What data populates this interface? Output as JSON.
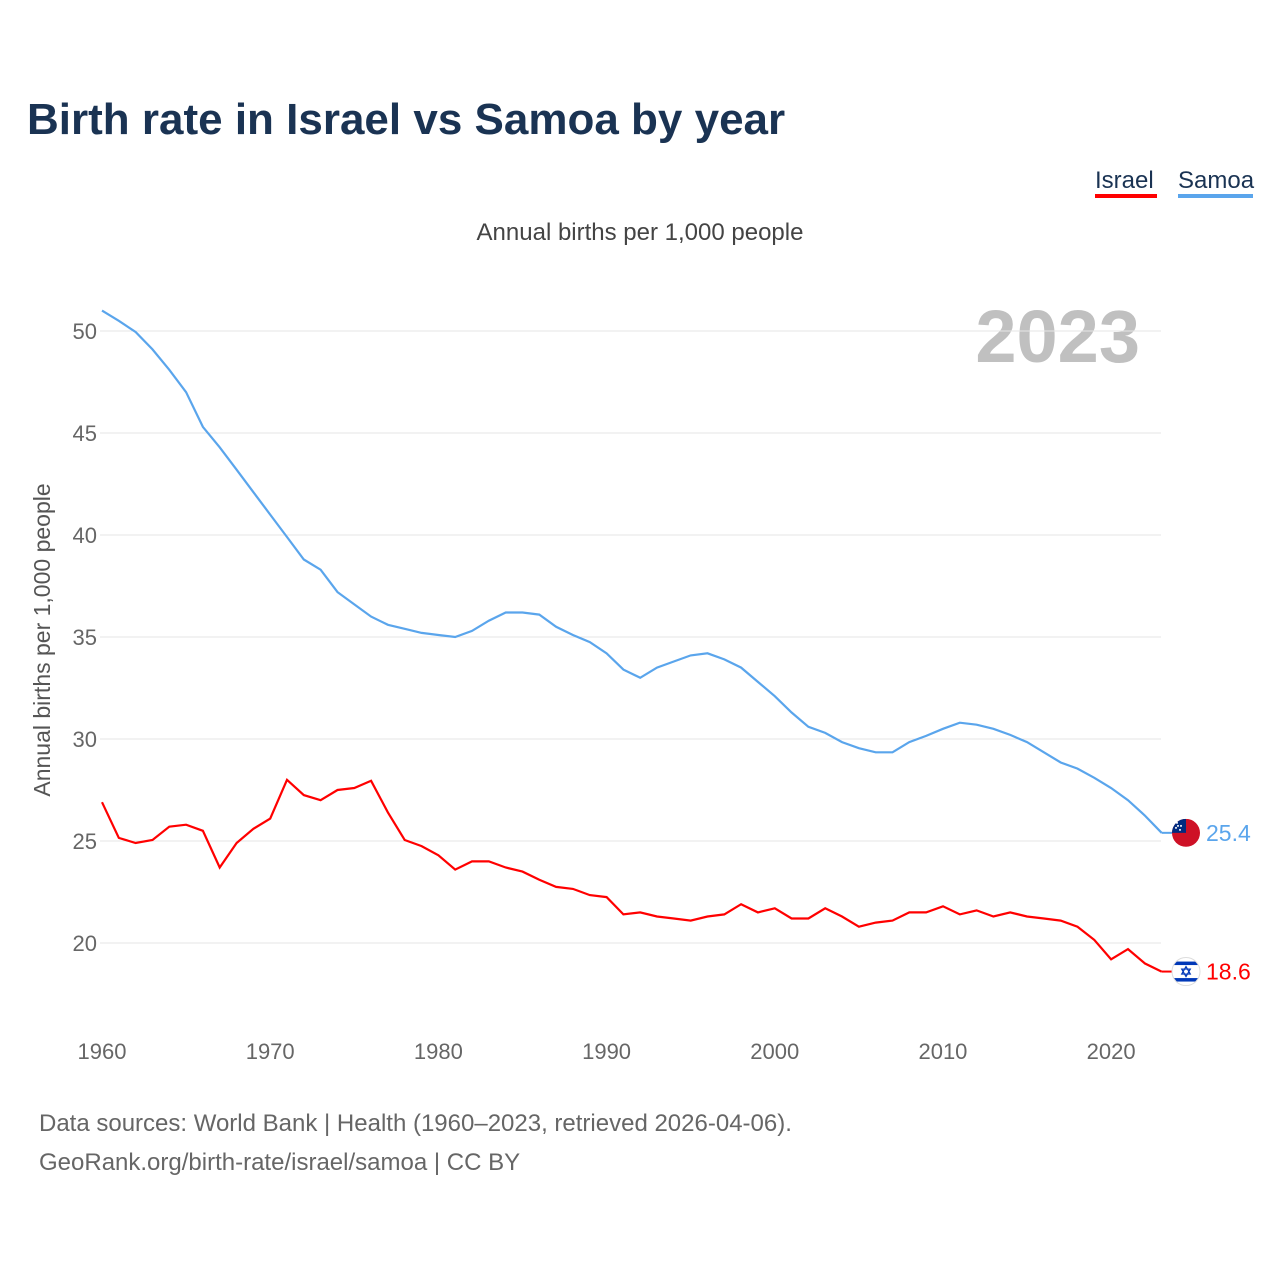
{
  "chart_data": {
    "type": "line",
    "title": "Birth rate in Israel vs Samoa by year",
    "subtitle": "Annual births per 1,000 people",
    "ylabel": "Annual births per 1,000 people",
    "xlabel": "",
    "year_badge": "2023",
    "ylim": [
      15.5,
      51.5
    ],
    "xlim": [
      1960,
      2023
    ],
    "yticks": [
      20,
      25,
      30,
      35,
      40,
      45,
      50
    ],
    "xticks": [
      1960,
      1970,
      1980,
      1990,
      2000,
      2010,
      2020
    ],
    "grid": true,
    "legend_position": "top-right",
    "x": [
      1960,
      1961,
      1962,
      1963,
      1964,
      1965,
      1966,
      1967,
      1968,
      1969,
      1970,
      1971,
      1972,
      1973,
      1974,
      1975,
      1976,
      1977,
      1978,
      1979,
      1980,
      1981,
      1982,
      1983,
      1984,
      1985,
      1986,
      1987,
      1988,
      1989,
      1990,
      1991,
      1992,
      1993,
      1994,
      1995,
      1996,
      1997,
      1998,
      1999,
      2000,
      2001,
      2002,
      2003,
      2004,
      2005,
      2006,
      2007,
      2008,
      2009,
      2010,
      2011,
      2012,
      2013,
      2014,
      2015,
      2016,
      2017,
      2018,
      2019,
      2020,
      2021,
      2022,
      2023
    ],
    "series": [
      {
        "name": "Israel",
        "color": "#ff0000",
        "end_label": "18.6",
        "flag": "israel-flag",
        "values": [
          26.9,
          25.15,
          24.9,
          25.05,
          25.7,
          25.8,
          25.5,
          23.7,
          24.9,
          25.6,
          26.1,
          28.0,
          27.25,
          27.0,
          27.5,
          27.6,
          27.95,
          26.4,
          25.05,
          24.75,
          24.3,
          23.6,
          24.0,
          24.0,
          23.7,
          23.5,
          23.1,
          22.75,
          22.65,
          22.35,
          22.25,
          21.4,
          21.5,
          21.3,
          21.2,
          21.1,
          21.3,
          21.4,
          21.9,
          21.5,
          21.7,
          21.2,
          21.2,
          21.7,
          21.3,
          20.8,
          21.0,
          21.1,
          21.5,
          21.5,
          21.8,
          21.4,
          21.6,
          21.3,
          21.5,
          21.3,
          21.2,
          21.1,
          20.8,
          20.15,
          19.2,
          19.7,
          19.0,
          18.6
        ]
      },
      {
        "name": "Samoa",
        "color": "#5aa5ec",
        "end_label": "25.4",
        "flag": "samoa-flag",
        "values": [
          51.0,
          50.5,
          49.95,
          49.1,
          48.1,
          47.0,
          45.3,
          44.3,
          43.2,
          42.1,
          41.0,
          39.9,
          38.8,
          38.3,
          37.2,
          36.6,
          36.0,
          35.6,
          35.4,
          35.2,
          35.1,
          35.0,
          35.3,
          35.8,
          36.2,
          36.2,
          36.1,
          35.5,
          35.1,
          34.75,
          34.2,
          33.4,
          33.0,
          33.5,
          33.8,
          34.1,
          34.2,
          33.9,
          33.5,
          32.8,
          32.1,
          31.3,
          30.6,
          30.3,
          29.85,
          29.55,
          29.35,
          29.35,
          29.85,
          30.15,
          30.5,
          30.8,
          30.7,
          30.5,
          30.2,
          29.85,
          29.35,
          28.85,
          28.55,
          28.1,
          27.6,
          27.0,
          26.25,
          25.4
        ]
      }
    ]
  },
  "footer": {
    "line1": "Data sources: World Bank | Health (1960–2023, retrieved 2026-04-06).",
    "line2": "GeoRank.org/birth-rate/israel/samoa | CC BY"
  }
}
